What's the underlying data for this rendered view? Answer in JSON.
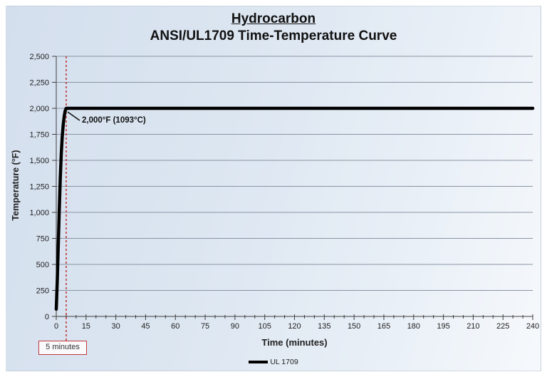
{
  "header": {
    "title": "Hydrocarbon",
    "subtitle": "ANSI/UL1709 Time-Temperature Curve"
  },
  "chart_data": {
    "type": "line",
    "title": "Hydrocarbon ANSI/UL1709 Time-Temperature Curve",
    "xlabel": "Time (minutes)",
    "ylabel": "Temperature (°F)",
    "xlim": [
      0,
      240
    ],
    "ylim": [
      0,
      2500
    ],
    "x_major_ticks": [
      0,
      15,
      30,
      45,
      60,
      75,
      90,
      105,
      120,
      135,
      150,
      165,
      180,
      195,
      210,
      225,
      240
    ],
    "x_minor_step": 5,
    "y_ticks": [
      0,
      250,
      500,
      750,
      1000,
      1250,
      1500,
      1750,
      2000,
      2250,
      2500
    ],
    "grid": "horizontal",
    "legend_position": "bottom-center",
    "series": [
      {
        "name": "UL 1709",
        "color": "#000000",
        "points": [
          [
            0,
            70
          ],
          [
            0.5,
            340
          ],
          [
            1,
            680
          ],
          [
            1.5,
            1020
          ],
          [
            2,
            1320
          ],
          [
            2.5,
            1560
          ],
          [
            3,
            1730
          ],
          [
            3.5,
            1845
          ],
          [
            4,
            1925
          ],
          [
            4.5,
            1975
          ],
          [
            5,
            2000
          ],
          [
            240,
            2000
          ]
        ]
      }
    ],
    "annotations": [
      {
        "text": "2,000°F (1093°C)",
        "x": 5,
        "y": 2000
      }
    ],
    "reference_lines": [
      {
        "x": 5,
        "label": "5 minutes",
        "style": "dashed",
        "color": "#bf3a3a"
      }
    ]
  },
  "colors": {
    "curve": "#000000",
    "grid": "#8a94a3",
    "axis": "#3f3f3f",
    "accent_red": "#bf3a3a"
  }
}
